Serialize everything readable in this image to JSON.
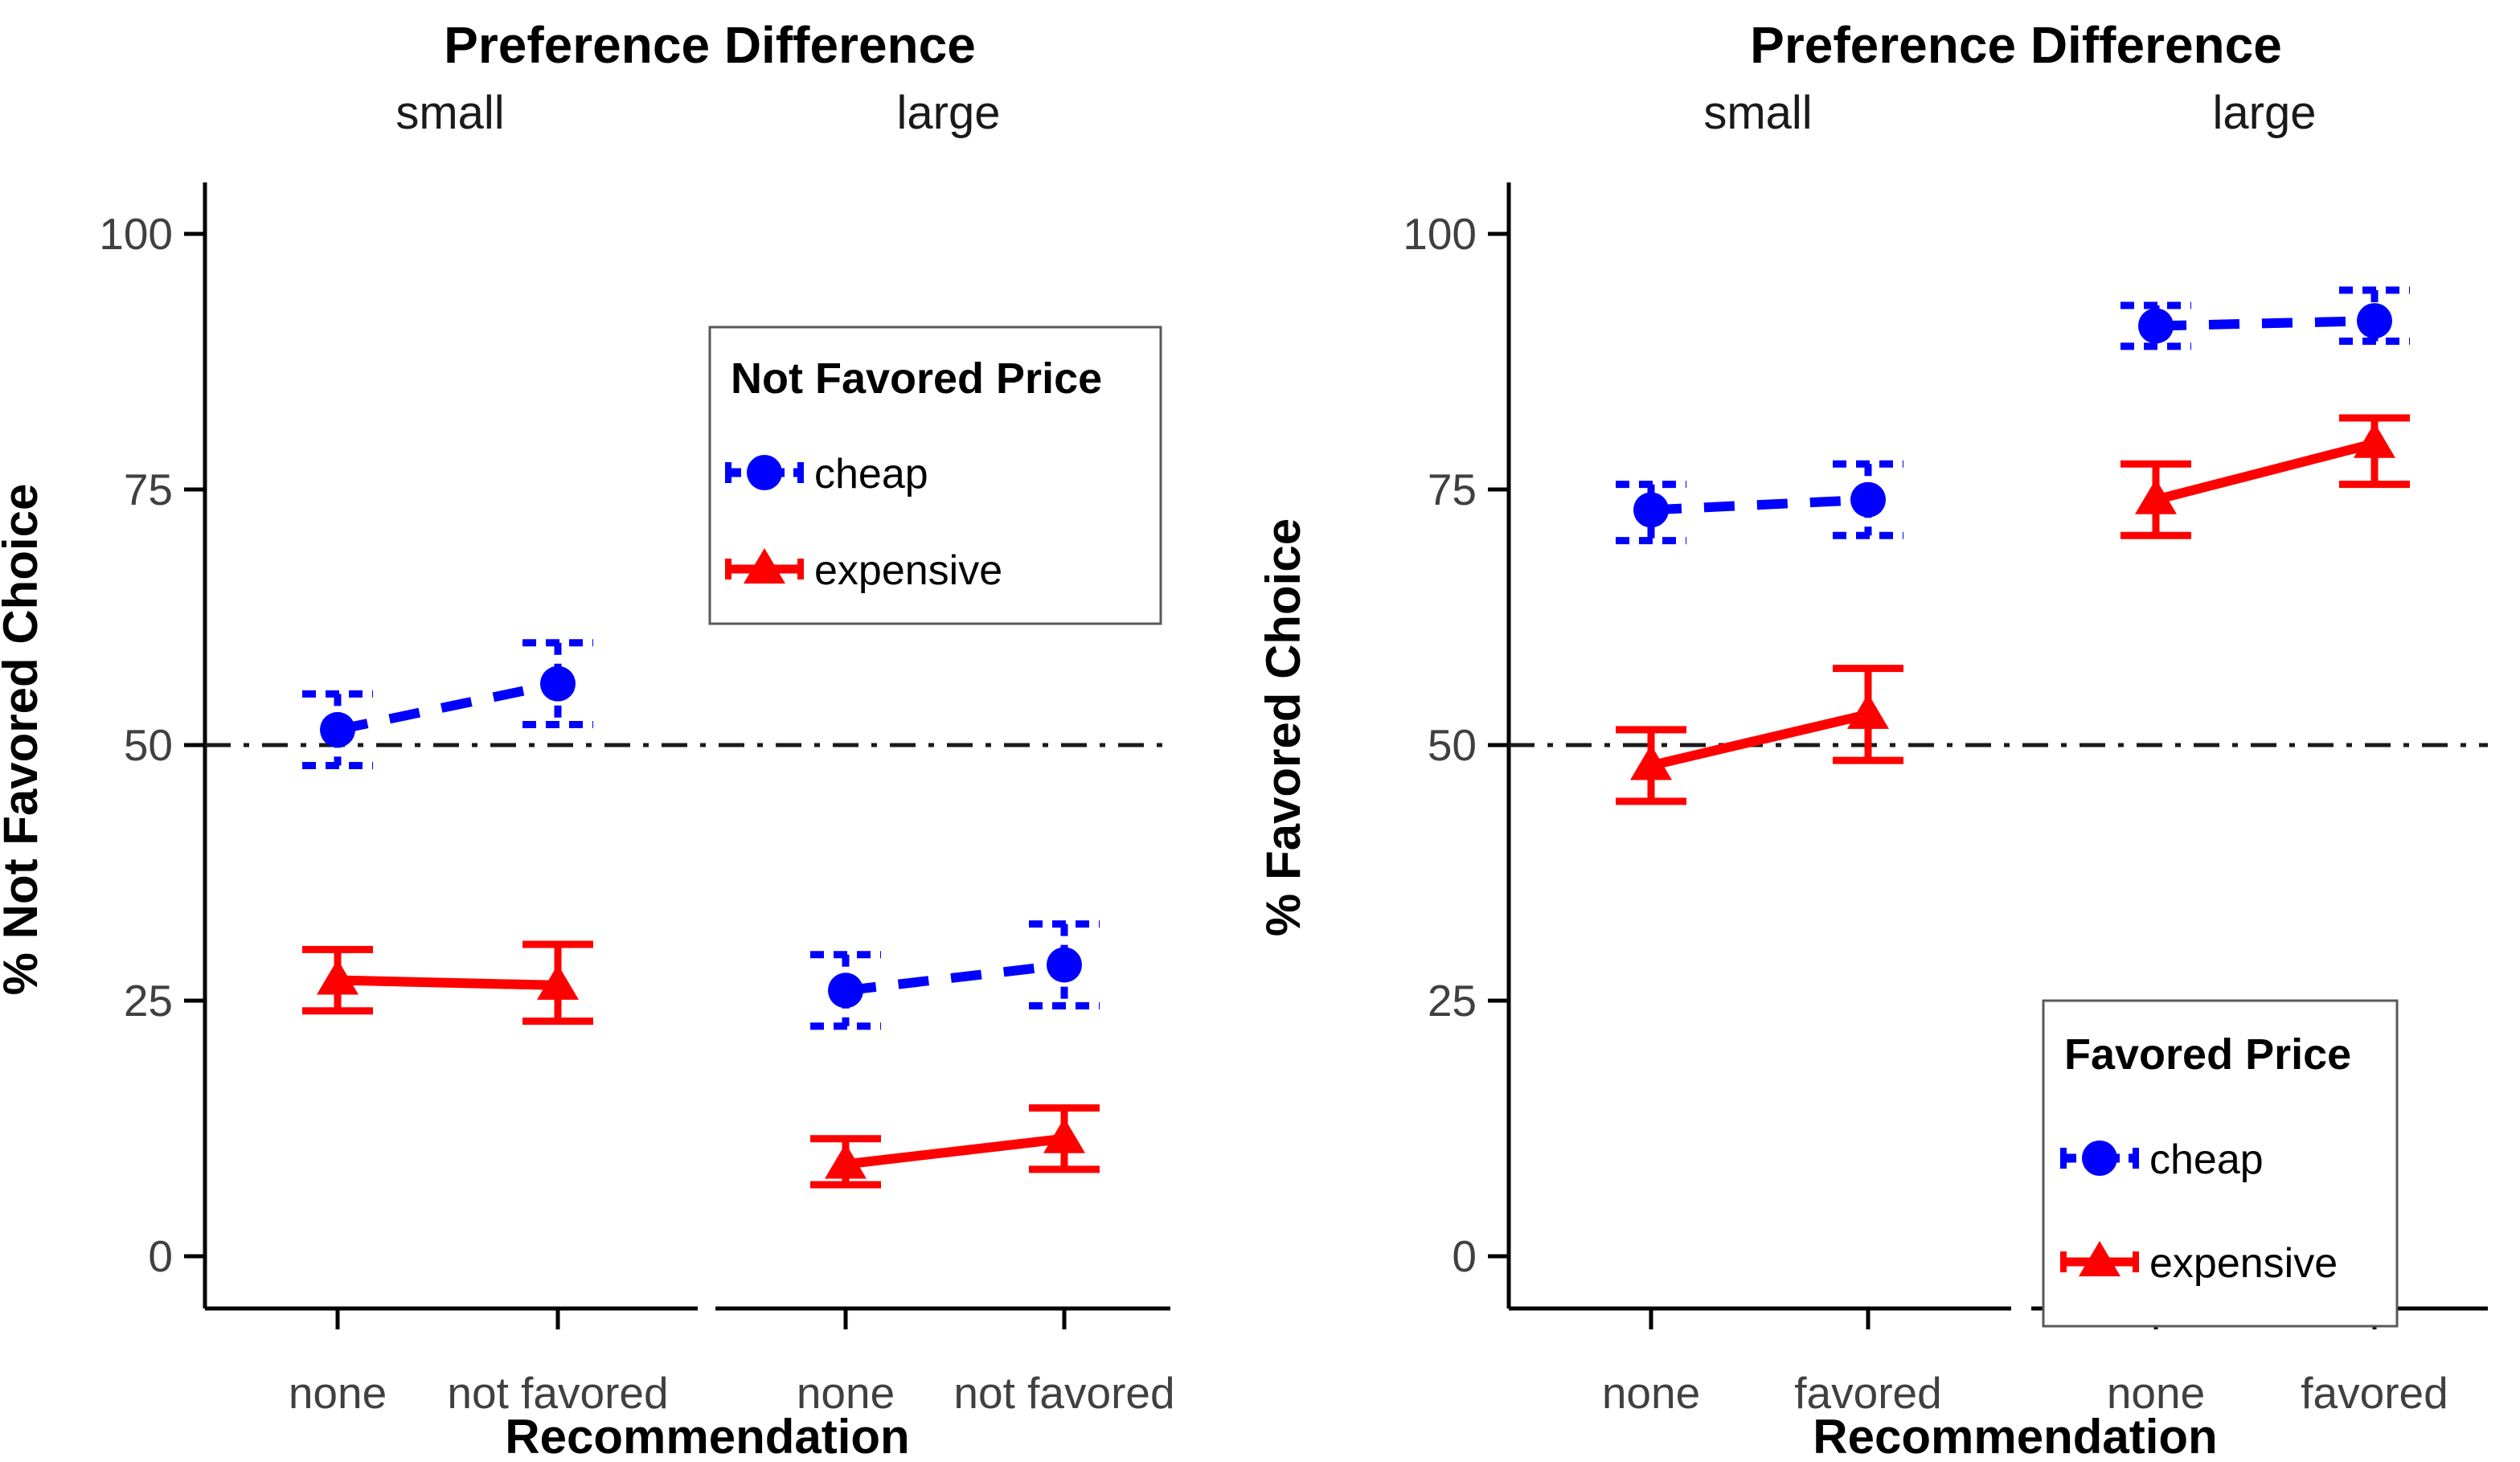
{
  "figure": {
    "background": "#FFFFFF",
    "accent_blue": "#0000FF",
    "accent_red": "#FF0000",
    "axis_color": "#000000",
    "tick_text_color": "#404040",
    "reference_line_color": "#1A1A1A"
  },
  "chart_data": [
    {
      "type": "line",
      "title": "Preference Difference",
      "xlabel": "Recommendation",
      "ylabel": "% Not Favored Choice",
      "x_categories": [
        "none",
        "not favored"
      ],
      "y_ticks": [
        0,
        25,
        50,
        75,
        100
      ],
      "ylim": [
        0,
        100
      ],
      "reference_line": 50,
      "grid": "off",
      "legend": {
        "title": "Not Favored Price",
        "position": "upper-center",
        "entries": [
          {
            "name": "cheap",
            "color": "#0000FF",
            "style": "dashed",
            "marker": "circle"
          },
          {
            "name": "expensive",
            "color": "#FF0000",
            "style": "solid",
            "marker": "triangle"
          }
        ]
      },
      "facets": [
        {
          "label": "small",
          "series": [
            {
              "name": "cheap",
              "values": [
                51.5,
                56
              ],
              "lower": [
                48,
                52
              ],
              "upper": [
                55,
                60
              ]
            },
            {
              "name": "expensive",
              "values": [
                27,
                26.5
              ],
              "lower": [
                24,
                23
              ],
              "upper": [
                30,
                30.5
              ]
            }
          ]
        },
        {
          "label": "large",
          "series": [
            {
              "name": "cheap",
              "values": [
                26,
                28.5
              ],
              "lower": [
                22.5,
                24.5
              ],
              "upper": [
                29.5,
                32.5
              ]
            },
            {
              "name": "expensive",
              "values": [
                9,
                11.5
              ],
              "lower": [
                7,
                8.5
              ],
              "upper": [
                11.5,
                14.5
              ]
            }
          ]
        }
      ]
    },
    {
      "type": "line",
      "title": "Preference Difference",
      "xlabel": "Recommendation",
      "ylabel": "% Favored Choice",
      "x_categories": [
        "none",
        "favored"
      ],
      "y_ticks": [
        0,
        25,
        50,
        75,
        100
      ],
      "ylim": [
        0,
        100
      ],
      "reference_line": 50,
      "grid": "off",
      "legend": {
        "title": "Favored Price",
        "position": "lower-right",
        "entries": [
          {
            "name": "cheap",
            "color": "#0000FF",
            "style": "dashed",
            "marker": "circle"
          },
          {
            "name": "expensive",
            "color": "#FF0000",
            "style": "solid",
            "marker": "triangle"
          }
        ]
      },
      "facets": [
        {
          "label": "small",
          "series": [
            {
              "name": "cheap",
              "values": [
                73,
                74
              ],
              "lower": [
                70,
                70.5
              ],
              "upper": [
                75.5,
                77.5
              ]
            },
            {
              "name": "expensive",
              "values": [
                48,
                53
              ],
              "lower": [
                44.5,
                48.5
              ],
              "upper": [
                51.5,
                57.5
              ]
            }
          ]
        },
        {
          "label": "large",
          "series": [
            {
              "name": "cheap",
              "values": [
                91,
                91.5
              ],
              "lower": [
                89,
                89.5
              ],
              "upper": [
                93,
                94.5
              ]
            },
            {
              "name": "expensive",
              "values": [
                74,
                79.5
              ],
              "lower": [
                70.5,
                75.5
              ],
              "upper": [
                77.5,
                82
              ]
            }
          ]
        }
      ]
    }
  ]
}
